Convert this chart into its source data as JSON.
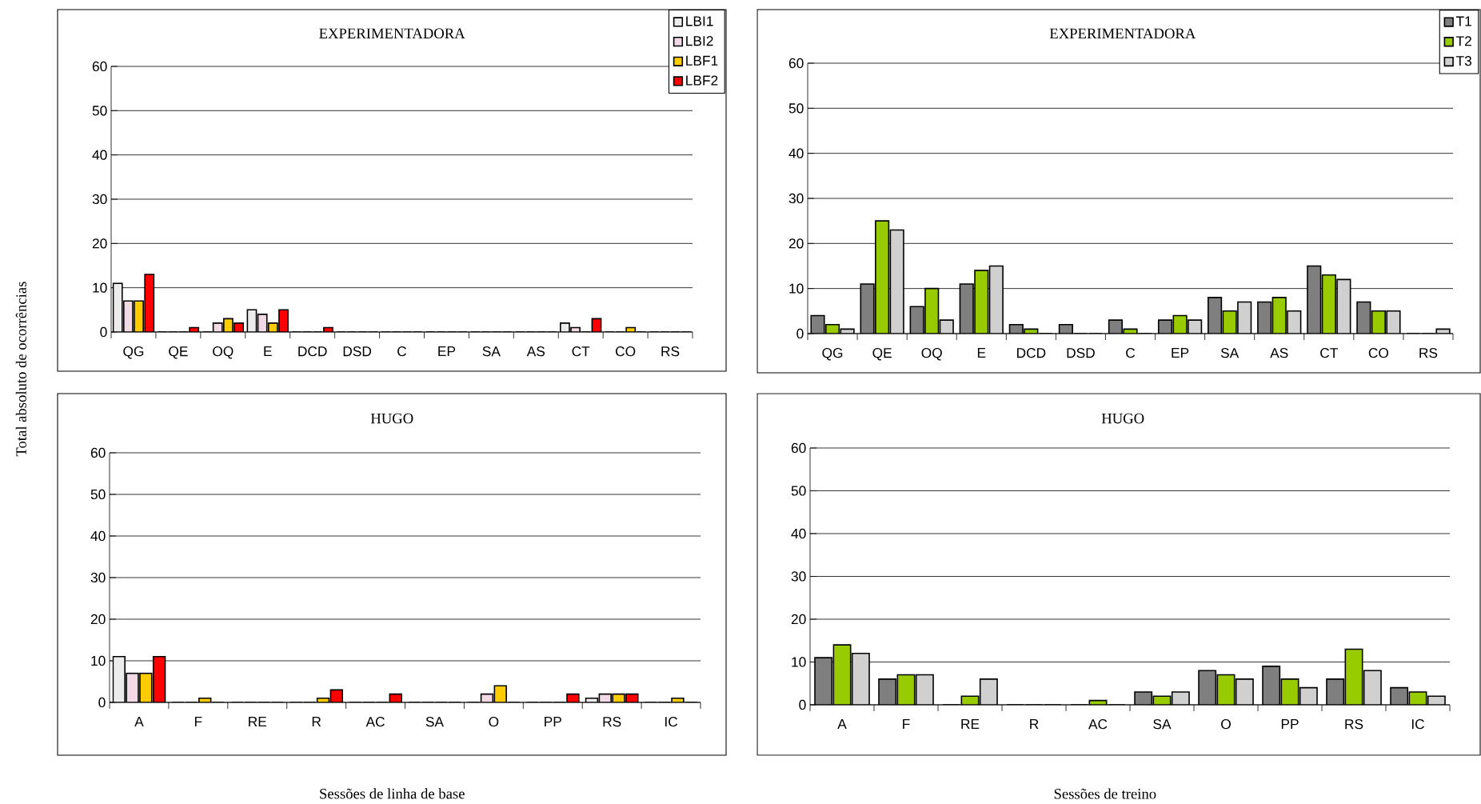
{
  "chart_data": [
    {
      "type": "bar",
      "title": "EXPERIMENTADORA",
      "ylabel": "Total absoluto de ocorrências",
      "categories": [
        "QG",
        "QE",
        "OQ",
        "E",
        "DCD",
        "DSD",
        "C",
        "EP",
        "SA",
        "AS",
        "CT",
        "CO",
        "RS"
      ],
      "ylim": [
        0,
        60
      ],
      "yticks": [
        0,
        10,
        20,
        30,
        40,
        50,
        60
      ],
      "grid": "y",
      "legend": "top right",
      "series": [
        {
          "name": "LBI1",
          "color": "#ececec",
          "values": [
            11,
            0,
            0,
            5,
            0,
            0,
            0,
            0,
            0,
            0,
            2,
            0,
            0
          ]
        },
        {
          "name": "LBI2",
          "color": "#f2d9e6",
          "values": [
            7,
            0,
            2,
            4,
            0,
            0,
            0,
            0,
            0,
            0,
            1,
            0,
            0
          ]
        },
        {
          "name": "LBF1",
          "color": "#ffcc00",
          "values": [
            7,
            0,
            3,
            2,
            0,
            0,
            0,
            0,
            0,
            0,
            0,
            1,
            0
          ]
        },
        {
          "name": "LBF2",
          "color": "#ff0000",
          "values": [
            13,
            1,
            2,
            5,
            1,
            0,
            0,
            0,
            0,
            0,
            3,
            0,
            0
          ]
        }
      ]
    },
    {
      "type": "bar",
      "title": "EXPERIMENTADORA",
      "categories": [
        "QG",
        "QE",
        "OQ",
        "E",
        "DCD",
        "DSD",
        "C",
        "EP",
        "SA",
        "AS",
        "CT",
        "CO",
        "RS"
      ],
      "ylim": [
        0,
        60
      ],
      "yticks": [
        0,
        10,
        20,
        30,
        40,
        50,
        60
      ],
      "grid": "y",
      "legend": "top right",
      "series": [
        {
          "name": "T1",
          "color": "#7f7f7f",
          "values": [
            4,
            11,
            6,
            11,
            2,
            2,
            3,
            3,
            8,
            7,
            15,
            7,
            0
          ]
        },
        {
          "name": "T2",
          "color": "#99cc00",
          "values": [
            2,
            25,
            10,
            14,
            1,
            0,
            1,
            4,
            5,
            8,
            13,
            5,
            0
          ]
        },
        {
          "name": "T3",
          "color": "#d0d0d0",
          "values": [
            1,
            23,
            3,
            15,
            0,
            0,
            0,
            3,
            7,
            5,
            12,
            5,
            1
          ]
        }
      ]
    },
    {
      "type": "bar",
      "title": "HUGO",
      "xlabel": "Sessões de linha de base",
      "categories": [
        "A",
        "F",
        "RE",
        "R",
        "AC",
        "SA",
        "O",
        "PP",
        "RS",
        "IC"
      ],
      "ylim": [
        0,
        60
      ],
      "yticks": [
        0,
        10,
        20,
        30,
        40,
        50,
        60
      ],
      "grid": "y",
      "series": [
        {
          "color": "#ececec",
          "values": [
            11,
            0,
            0,
            0,
            0,
            0,
            0,
            0,
            1,
            0
          ]
        },
        {
          "color": "#f2d9e6",
          "values": [
            7,
            0,
            0,
            0,
            0,
            0,
            2,
            0,
            2,
            0
          ]
        },
        {
          "color": "#ffcc00",
          "values": [
            7,
            1,
            0,
            1,
            0,
            0,
            4,
            0,
            2,
            1
          ]
        },
        {
          "color": "#ff0000",
          "values": [
            11,
            0,
            0,
            3,
            2,
            0,
            0,
            2,
            2,
            0
          ]
        }
      ]
    },
    {
      "type": "bar",
      "title": "HUGO",
      "xlabel": "Sessões de treino",
      "categories": [
        "A",
        "F",
        "RE",
        "R",
        "AC",
        "SA",
        "O",
        "PP",
        "RS",
        "IC"
      ],
      "ylim": [
        0,
        60
      ],
      "yticks": [
        0,
        10,
        20,
        30,
        40,
        50,
        60
      ],
      "grid": "y",
      "series": [
        {
          "color": "#7f7f7f",
          "values": [
            11,
            6,
            0,
            0,
            0,
            3,
            8,
            9,
            6,
            4
          ]
        },
        {
          "color": "#99cc00",
          "values": [
            14,
            7,
            2,
            0,
            1,
            2,
            7,
            6,
            13,
            3
          ]
        },
        {
          "color": "#d0d0d0",
          "values": [
            12,
            7,
            6,
            0,
            0,
            3,
            6,
            4,
            8,
            2
          ]
        }
      ]
    }
  ]
}
